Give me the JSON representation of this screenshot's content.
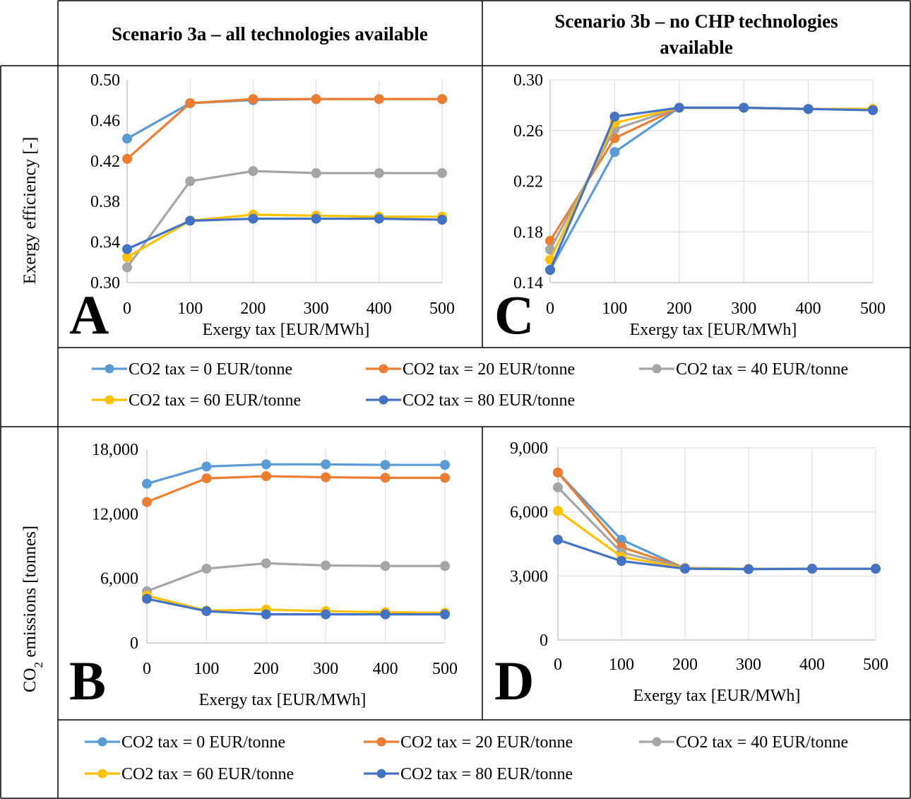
{
  "headers": {
    "col_a": "Scenario 3a – all technologies available",
    "col_b_line1": "Scenario 3b – no CHP technologies",
    "col_b_line2": "available"
  },
  "row_labels": {
    "top": "Exergy efficiency [-]",
    "bottom_prefix": "CO",
    "bottom_sub": "2",
    "bottom_suffix": " emissions [tonnes]"
  },
  "legend": [
    {
      "label": "CO2 tax = 0 EUR/tonne",
      "color": "#5B9BD5"
    },
    {
      "label": "CO2 tax = 20 EUR/tonne",
      "color": "#ED7D31"
    },
    {
      "label": "CO2 tax = 40 EUR/tonne",
      "color": "#A5A5A5"
    },
    {
      "label": "CO2 tax = 60 EUR/tonne",
      "color": "#FFC000"
    },
    {
      "label": "CO2 tax = 80 EUR/tonne",
      "color": "#4472C4"
    }
  ],
  "chart_data": [
    {
      "panel": "A",
      "type": "line",
      "xlabel": "Exergy tax [EUR/MWh]",
      "ylabel": "",
      "x": [
        0,
        100,
        200,
        300,
        400,
        500
      ],
      "ylim": [
        0.3,
        0.5
      ],
      "yticks": [
        "0.30",
        "0.34",
        "0.38",
        "0.42",
        "0.46",
        "0.50"
      ],
      "grid": "vertical",
      "series": [
        {
          "name": "CO2 tax = 0 EUR/tonne",
          "values": [
            0.442,
            0.477,
            0.48,
            0.481,
            0.481,
            0.481
          ]
        },
        {
          "name": "CO2 tax = 20 EUR/tonne",
          "values": [
            0.422,
            0.477,
            0.481,
            0.481,
            0.481,
            0.481
          ]
        },
        {
          "name": "CO2 tax = 40 EUR/tonne",
          "values": [
            0.315,
            0.4,
            0.41,
            0.408,
            0.408,
            0.408
          ]
        },
        {
          "name": "CO2 tax = 60 EUR/tonne",
          "values": [
            0.325,
            0.361,
            0.367,
            0.366,
            0.365,
            0.365
          ]
        },
        {
          "name": "CO2 tax = 80 EUR/tonne",
          "values": [
            0.333,
            0.361,
            0.363,
            0.363,
            0.363,
            0.362
          ]
        }
      ]
    },
    {
      "panel": "C",
      "type": "line",
      "xlabel": "Exergy tax [EUR/MWh]",
      "ylabel": "",
      "x": [
        0,
        100,
        200,
        300,
        400,
        500
      ],
      "ylim": [
        0.14,
        0.3
      ],
      "yticks": [
        "0.14",
        "0.18",
        "0.22",
        "0.26",
        "0.30"
      ],
      "grid": "both",
      "series": [
        {
          "name": "CO2 tax = 0 EUR/tonne",
          "values": [
            0.15,
            0.243,
            0.278,
            0.278,
            0.277,
            0.277
          ]
        },
        {
          "name": "CO2 tax = 20 EUR/tonne",
          "values": [
            0.173,
            0.254,
            0.278,
            0.278,
            0.277,
            0.277
          ]
        },
        {
          "name": "CO2 tax = 40 EUR/tonne",
          "values": [
            0.166,
            0.261,
            0.278,
            0.278,
            0.277,
            0.277
          ]
        },
        {
          "name": "CO2 tax = 60 EUR/tonne",
          "values": [
            0.158,
            0.266,
            0.278,
            0.278,
            0.277,
            0.277
          ]
        },
        {
          "name": "CO2 tax = 80 EUR/tonne",
          "values": [
            0.15,
            0.271,
            0.278,
            0.278,
            0.277,
            0.276
          ]
        }
      ]
    },
    {
      "panel": "B",
      "type": "line",
      "xlabel": "Exergy tax [EUR/MWh]",
      "ylabel": "",
      "x": [
        0,
        100,
        200,
        300,
        400,
        500
      ],
      "ylim": [
        0,
        18000
      ],
      "yticks": [
        "0",
        "6,000",
        "12,000",
        "18,000"
      ],
      "grid": "vertical",
      "series": [
        {
          "name": "CO2 tax = 0 EUR/tonne",
          "values": [
            14800,
            16400,
            16600,
            16600,
            16550,
            16550
          ]
        },
        {
          "name": "CO2 tax = 20 EUR/tonne",
          "values": [
            13100,
            15300,
            15500,
            15400,
            15350,
            15350
          ]
        },
        {
          "name": "CO2 tax = 40 EUR/tonne",
          "values": [
            4800,
            6900,
            7400,
            7200,
            7150,
            7150
          ]
        },
        {
          "name": "CO2 tax = 60 EUR/tonne",
          "values": [
            4400,
            3000,
            3100,
            2950,
            2850,
            2800
          ]
        },
        {
          "name": "CO2 tax = 80 EUR/tonne",
          "values": [
            4100,
            2950,
            2650,
            2650,
            2650,
            2650
          ]
        }
      ]
    },
    {
      "panel": "D",
      "type": "line",
      "xlabel": "Exergy tax [EUR/MWh]",
      "ylabel": "",
      "x": [
        0,
        100,
        200,
        300,
        400,
        500
      ],
      "ylim": [
        0,
        9000
      ],
      "yticks": [
        "0",
        "3,000",
        "6,000",
        "9,000"
      ],
      "grid": "both",
      "series": [
        {
          "name": "CO2 tax = 0 EUR/tonne",
          "values": [
            7850,
            4700,
            3350,
            3320,
            3340,
            3340
          ]
        },
        {
          "name": "CO2 tax = 20 EUR/tonne",
          "values": [
            7850,
            4350,
            3380,
            3330,
            3340,
            3340
          ]
        },
        {
          "name": "CO2 tax = 40 EUR/tonne",
          "values": [
            7150,
            4100,
            3380,
            3330,
            3340,
            3340
          ]
        },
        {
          "name": "CO2 tax = 60 EUR/tonne",
          "values": [
            6050,
            3900,
            3360,
            3330,
            3340,
            3340
          ]
        },
        {
          "name": "CO2 tax = 80 EUR/tonne",
          "values": [
            4700,
            3700,
            3340,
            3320,
            3340,
            3340
          ]
        }
      ]
    }
  ]
}
